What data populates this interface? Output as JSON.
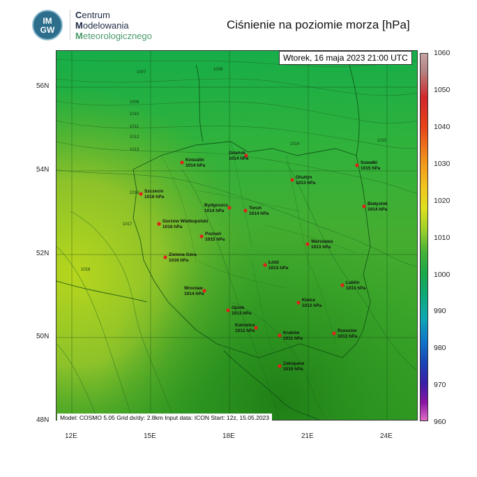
{
  "logo": {
    "badge_top": "IM",
    "badge_bottom": "GW",
    "line1_cap": "C",
    "line1_rest": "entrum",
    "line2_cap": "M",
    "line2_rest": "odelowania",
    "line3_cap": "M",
    "line3_rest": "eteorologicznego",
    "color_text": "#1f2a44",
    "color_green": "#4a9a6a"
  },
  "title": "Ciśnienie na poziomie morza [hPa]",
  "datetime": "Wtorek, 16 maja 2023 21:00 UTC",
  "model_info": "Model: COSMO 5.05  Grid dx/dy: 2.8km  Input data: ICON  Start: 12z, 15.05.2023",
  "lat_labels": [
    "56N",
    "54N",
    "52N",
    "50N",
    "48N"
  ],
  "lon_labels": [
    "12E",
    "15E",
    "18E",
    "21E",
    "24E"
  ],
  "colorbar": {
    "labels": [
      "1060",
      "1050",
      "1040",
      "1030",
      "1020",
      "1010",
      "1000",
      "990",
      "980",
      "970",
      "960"
    ]
  },
  "cities": [
    {
      "name": "Koszalin",
      "value": "1014 hPa"
    },
    {
      "name": "Gdańsk",
      "value": "1014 hPa"
    },
    {
      "name": "Suwałki",
      "value": "1015 hPa"
    },
    {
      "name": "Olsztyn",
      "value": "1013 hPa"
    },
    {
      "name": "Szczecin",
      "value": "1016 hPa"
    },
    {
      "name": "Bydgoszcz",
      "value": "1014 hPa"
    },
    {
      "name": "Toruń",
      "value": "1014 hPa"
    },
    {
      "name": "Białystok",
      "value": "1014 hPa"
    },
    {
      "name": "Gorzów Wielkopolski",
      "value": "1016 hPa"
    },
    {
      "name": "Poznań",
      "value": "1015 hPa"
    },
    {
      "name": "Warszawa",
      "value": "1013 hPa"
    },
    {
      "name": "Zielona Góra",
      "value": "1016 hPa"
    },
    {
      "name": "Łódź",
      "value": "1013 hPa"
    },
    {
      "name": "Wrocław",
      "value": "1014 hPa"
    },
    {
      "name": "Lublin",
      "value": "1013 hPa"
    },
    {
      "name": "Opole",
      "value": "1013 hPa"
    },
    {
      "name": "Kielce",
      "value": "1012 hPa"
    },
    {
      "name": "Katowice",
      "value": "1012 hPa"
    },
    {
      "name": "Kraków",
      "value": "1011 hPa"
    },
    {
      "name": "Rzeszów",
      "value": "1012 hPa"
    },
    {
      "name": "Zakopane",
      "value": "1010 hPa"
    }
  ],
  "isobar_labels": [
    "1007",
    "1008",
    "1009",
    "1010",
    "1011",
    "1012",
    "1013",
    "1014",
    "1015",
    "1016",
    "1017",
    "1018"
  ]
}
